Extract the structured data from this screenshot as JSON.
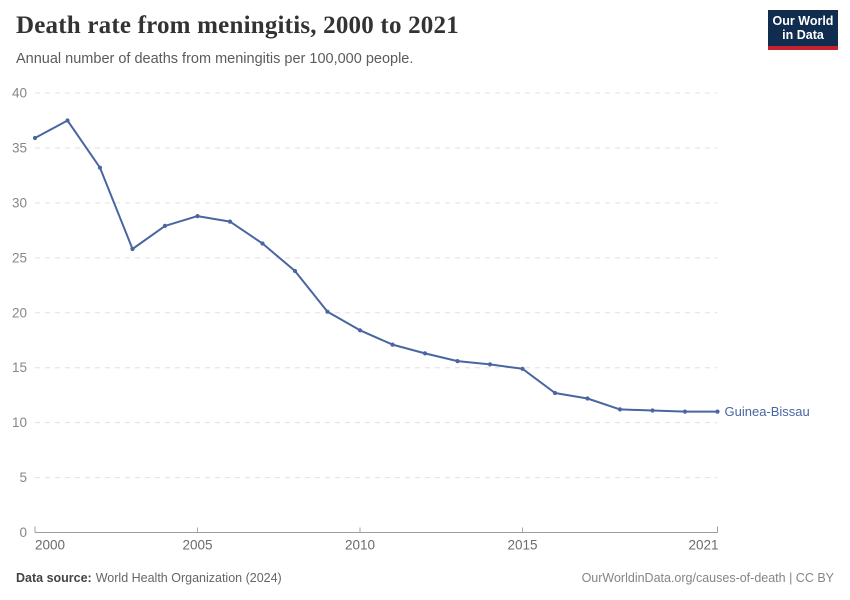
{
  "header": {
    "title": "Death rate from meningitis, 2000 to 2021",
    "subtitle": "Annual number of deaths from meningitis per 100,000 people."
  },
  "logo": {
    "line1": "Our World",
    "line2": "in Data",
    "background_color": "#102D50",
    "bar_color": "#C4222C"
  },
  "footer": {
    "source_label": "Data source:",
    "source_value": "World Health Organization (2024)",
    "attribution": "OurWorldinData.org/causes-of-death | CC BY"
  },
  "chart_data": {
    "type": "line",
    "title": "Death rate from meningitis, 2000 to 2021",
    "xlabel": "",
    "ylabel": "",
    "xlim": [
      2000,
      2021
    ],
    "ylim": [
      0,
      40
    ],
    "yticks": [
      0,
      5,
      10,
      15,
      20,
      25,
      30,
      35,
      40
    ],
    "xticks": [
      2000,
      2005,
      2010,
      2015,
      2021
    ],
    "grid": "dashed-horizontal",
    "legend_position": "end-of-line-label",
    "series": [
      {
        "name": "Guinea-Bissau",
        "color": "#4A66A0",
        "x": [
          2000,
          2001,
          2002,
          2003,
          2004,
          2005,
          2006,
          2007,
          2008,
          2009,
          2010,
          2011,
          2012,
          2013,
          2014,
          2015,
          2016,
          2017,
          2018,
          2019,
          2020,
          2021
        ],
        "values": [
          35.9,
          37.5,
          33.2,
          25.8,
          27.9,
          28.8,
          28.3,
          26.3,
          23.8,
          20.1,
          18.4,
          17.1,
          16.3,
          15.6,
          15.3,
          14.9,
          12.7,
          12.2,
          11.2,
          11.1,
          11.0,
          11.0
        ]
      }
    ]
  }
}
